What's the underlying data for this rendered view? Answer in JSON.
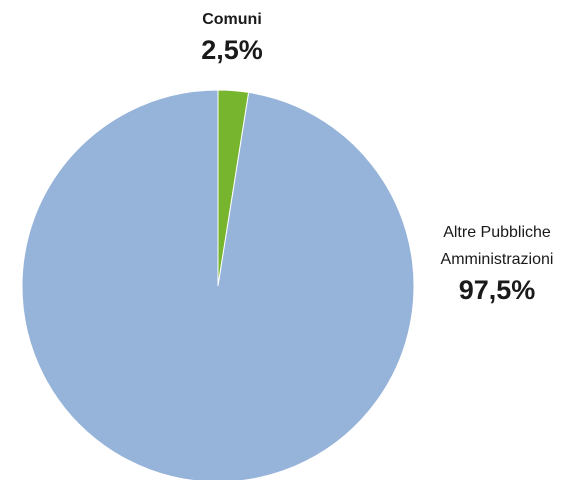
{
  "chart_data": {
    "type": "pie",
    "categories": [
      "Comuni",
      "Altre Pubbliche Amministrazioni"
    ],
    "values": [
      2.5,
      97.5
    ],
    "value_labels": [
      "2,5%",
      "97,5%"
    ],
    "colors": [
      "#77b52e",
      "#96b3d9"
    ]
  }
}
